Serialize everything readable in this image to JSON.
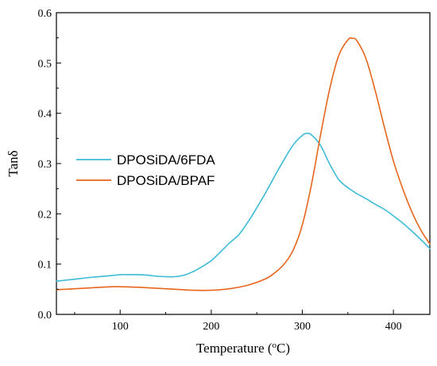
{
  "chart_data": {
    "type": "line",
    "title": "",
    "xlabel_main": "Temperature (",
    "xlabel_sup": "o",
    "xlabel_end": "C)",
    "ylabel": "Tanδ",
    "xlim": [
      30,
      440
    ],
    "ylim": [
      0.0,
      0.6
    ],
    "x_ticks": [
      100,
      200,
      300,
      400
    ],
    "x_tick_labels": [
      "100",
      "200",
      "300",
      "400"
    ],
    "y_ticks": [
      0.0,
      0.1,
      0.2,
      0.3,
      0.4,
      0.5,
      0.6
    ],
    "y_tick_labels": [
      "0.0",
      "0.1",
      "0.2",
      "0.3",
      "0.4",
      "0.5",
      "0.6"
    ],
    "grid": false,
    "legend_position": "left-middle",
    "series": [
      {
        "name": "DPOSiDA/6FDA",
        "color": "#3dbbd6",
        "x": [
          30,
          50,
          70,
          90,
          100,
          110,
          120,
          130,
          140,
          150,
          160,
          170,
          180,
          190,
          200,
          210,
          220,
          230,
          240,
          250,
          260,
          270,
          280,
          290,
          300,
          305,
          310,
          320,
          330,
          340,
          350,
          360,
          370,
          380,
          390,
          400,
          410,
          420,
          430,
          440
        ],
        "y": [
          0.066,
          0.07,
          0.074,
          0.077,
          0.079,
          0.079,
          0.079,
          0.078,
          0.076,
          0.075,
          0.075,
          0.078,
          0.085,
          0.095,
          0.107,
          0.124,
          0.142,
          0.158,
          0.183,
          0.212,
          0.243,
          0.276,
          0.308,
          0.337,
          0.356,
          0.36,
          0.357,
          0.336,
          0.299,
          0.268,
          0.252,
          0.24,
          0.23,
          0.219,
          0.209,
          0.196,
          0.182,
          0.166,
          0.149,
          0.131
        ]
      },
      {
        "name": "DPOSiDA/BPAF",
        "color": "#e8651d",
        "x": [
          30,
          50,
          70,
          90,
          100,
          120,
          140,
          160,
          180,
          200,
          220,
          240,
          260,
          270,
          280,
          290,
          300,
          310,
          320,
          330,
          340,
          350,
          355,
          360,
          370,
          380,
          390,
          400,
          410,
          420,
          430,
          440
        ],
        "y": [
          0.049,
          0.051,
          0.053,
          0.055,
          0.055,
          0.054,
          0.052,
          0.05,
          0.048,
          0.048,
          0.051,
          0.058,
          0.071,
          0.083,
          0.1,
          0.128,
          0.178,
          0.258,
          0.357,
          0.448,
          0.515,
          0.546,
          0.549,
          0.544,
          0.508,
          0.445,
          0.373,
          0.305,
          0.251,
          0.205,
          0.168,
          0.14
        ]
      }
    ],
    "overlap_color": "#b79a1e"
  }
}
